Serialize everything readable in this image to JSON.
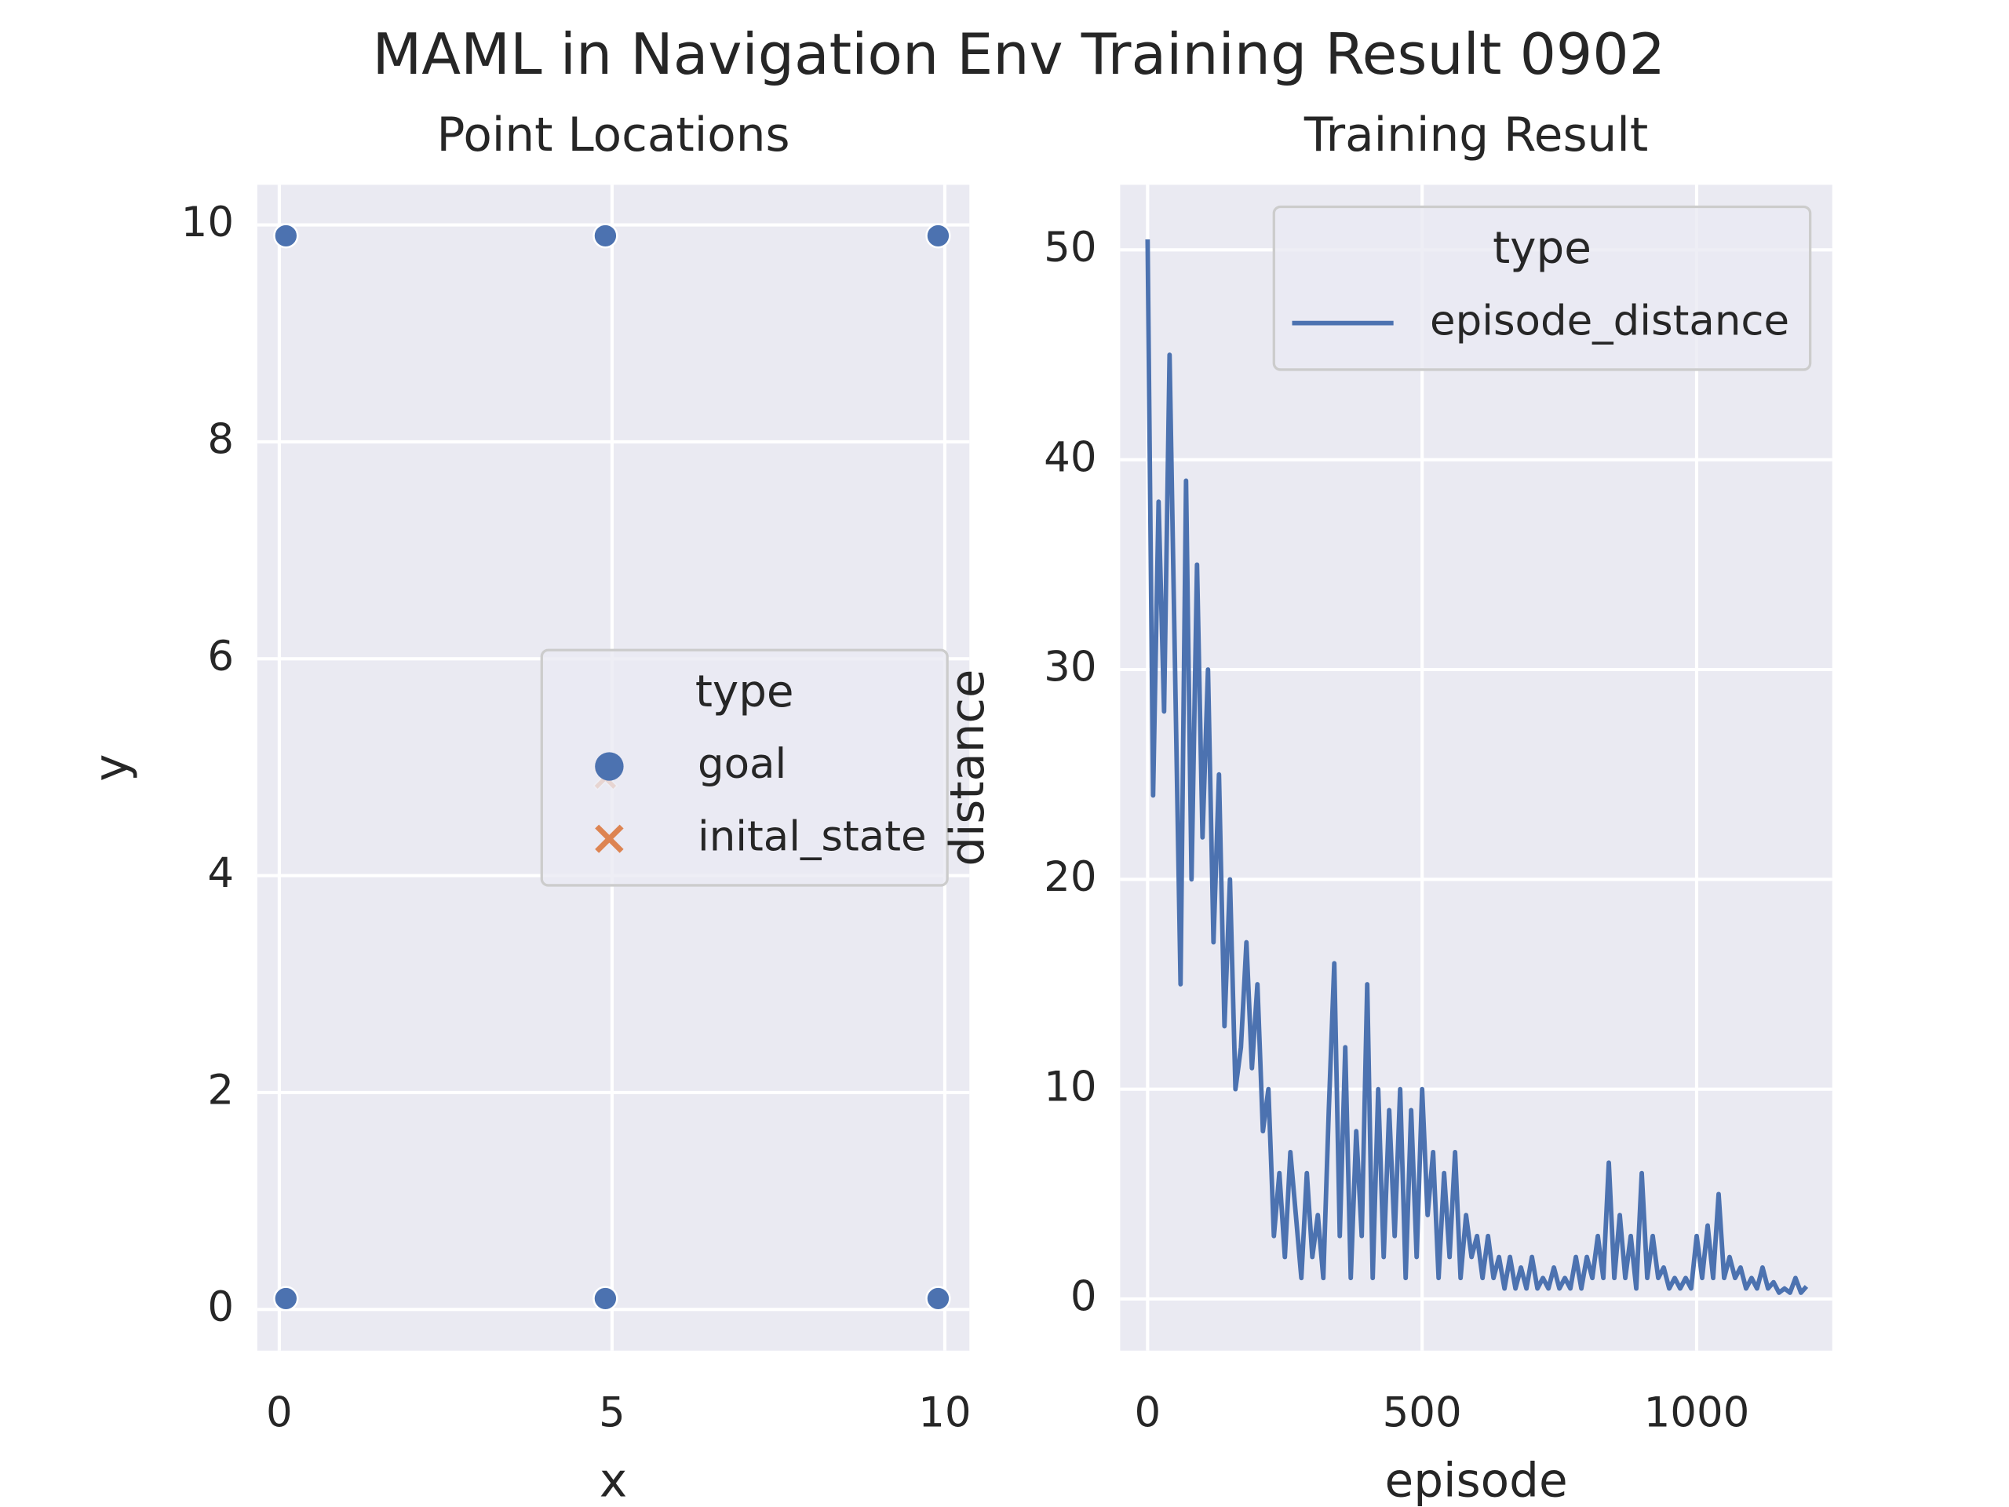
{
  "title": "MAML in Navigation Env Training Result 0902",
  "chart_data": [
    {
      "type": "scatter",
      "title": "Point Locations",
      "x_label": "x",
      "y_label": "y",
      "xlim": [
        -0.33,
        10.37
      ],
      "ylim": [
        -0.38,
        10.37
      ],
      "xticks": [
        0,
        5,
        10
      ],
      "yticks": [
        0,
        2,
        4,
        6,
        8,
        10
      ],
      "grid": true,
      "legend_title": "type",
      "legend": "center right",
      "series": [
        {
          "name": "goal",
          "color": "#4c72b0",
          "marker": "circle",
          "x": [
            0.1,
            4.9,
            9.9,
            0.1,
            4.9,
            9.9
          ],
          "y": [
            9.9,
            9.9,
            9.9,
            0.1,
            0.1,
            0.1
          ]
        },
        {
          "name": "inital_state",
          "color": "#dd8452",
          "marker": "x",
          "x": [
            4.9
          ],
          "y": [
            4.9
          ]
        }
      ]
    },
    {
      "type": "line",
      "title": "Training Result",
      "x_label": "episode",
      "y_label": "distance",
      "xlim": [
        -50,
        1247
      ],
      "ylim": [
        -2.46,
        53.1
      ],
      "xticks": [
        0,
        500,
        1000
      ],
      "yticks": [
        0,
        10,
        20,
        30,
        40,
        50
      ],
      "grid": true,
      "legend_title": "type",
      "legend": "upper right",
      "x": [
        0,
        10,
        20,
        30,
        40,
        50,
        60,
        70,
        80,
        90,
        100,
        110,
        120,
        130,
        140,
        150,
        160,
        170,
        180,
        190,
        200,
        210,
        220,
        230,
        240,
        250,
        260,
        270,
        280,
        290,
        300,
        310,
        320,
        330,
        340,
        350,
        360,
        370,
        380,
        390,
        400,
        410,
        420,
        430,
        440,
        450,
        460,
        470,
        480,
        490,
        500,
        510,
        520,
        530,
        540,
        550,
        560,
        570,
        580,
        590,
        600,
        610,
        620,
        630,
        640,
        650,
        660,
        670,
        680,
        690,
        700,
        710,
        720,
        730,
        740,
        750,
        760,
        770,
        780,
        790,
        800,
        810,
        820,
        830,
        840,
        850,
        860,
        870,
        880,
        890,
        900,
        910,
        920,
        930,
        940,
        950,
        960,
        970,
        980,
        990,
        1000,
        1010,
        1020,
        1030,
        1040,
        1050,
        1060,
        1070,
        1080,
        1090,
        1100,
        1110,
        1120,
        1130,
        1140,
        1150,
        1160,
        1170,
        1180,
        1190,
        1200
      ],
      "series": [
        {
          "name": "episode_distance",
          "color": "#4c72b0",
          "values": [
            50.5,
            24,
            38,
            28,
            45,
            30,
            15,
            39,
            20,
            35,
            22,
            30,
            17,
            25,
            13,
            20,
            10,
            12,
            17,
            11,
            15,
            8,
            10,
            3,
            6,
            2,
            7,
            4,
            1,
            6,
            2,
            4,
            1,
            9,
            16,
            3,
            12,
            1,
            8,
            3,
            15,
            1,
            10,
            2,
            9,
            3,
            10,
            1,
            9,
            2,
            10,
            4,
            7,
            1,
            6,
            2,
            7,
            1,
            4,
            2,
            3,
            1,
            3,
            1,
            2,
            0.5,
            2,
            0.5,
            1.5,
            0.5,
            2,
            0.5,
            1,
            0.5,
            1.5,
            0.5,
            1,
            0.5,
            2,
            0.5,
            2,
            1,
            3,
            1,
            6.5,
            1,
            4,
            1,
            3,
            0.5,
            6,
            1,
            3,
            1,
            1.5,
            0.5,
            1,
            0.5,
            1,
            0.5,
            3,
            1,
            3.5,
            1,
            5,
            1,
            2,
            1,
            1.5,
            0.5,
            1,
            0.5,
            1.5,
            0.5,
            0.8,
            0.3,
            0.5,
            0.3,
            1,
            0.3,
            0.6
          ]
        }
      ]
    }
  ]
}
